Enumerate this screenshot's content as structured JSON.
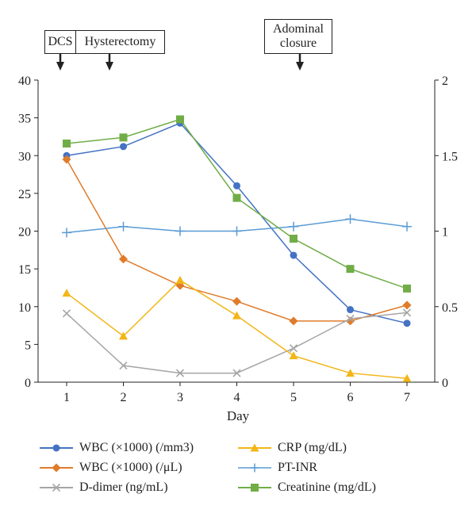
{
  "annotations": {
    "dcs": "DCS",
    "hysterectomy": "Hysterectomy",
    "closure_line1": "Adominal",
    "closure_line2": "closure"
  },
  "chart_data": {
    "type": "line",
    "xlabel": "Day",
    "categories": [
      1,
      2,
      3,
      4,
      5,
      6,
      7
    ],
    "ylim": [
      0,
      40
    ],
    "y2lim": [
      0,
      2
    ],
    "yticks": [
      0,
      5,
      10,
      15,
      20,
      25,
      30,
      35,
      40
    ],
    "y2ticks": [
      "0",
      "0.5",
      "1",
      "1.5",
      "2"
    ],
    "grid": false,
    "legend_position": "bottom",
    "series": [
      {
        "name": "WBC (×1000) (/mm3)",
        "axis": "left",
        "marker": "circle",
        "color": "#4472C4",
        "values": [
          30,
          31.2,
          34.3,
          26,
          16.8,
          9.6,
          7.8
        ]
      },
      {
        "name": "WBC (×1000) (/μL)",
        "axis": "left",
        "marker": "diamond",
        "color": "#E07B2A",
        "values": [
          29.5,
          16.3,
          12.8,
          10.7,
          8.1,
          8.1,
          10.2
        ]
      },
      {
        "name": "D-dimer (ng/mL)",
        "axis": "left",
        "marker": "x",
        "color": "#A5A5A5",
        "values": [
          9.1,
          2.2,
          1.2,
          1.2,
          4.5,
          8.4,
          9.2
        ]
      },
      {
        "name": "CRP (mg/dL)",
        "axis": "left",
        "marker": "triangle",
        "color": "#F2B619",
        "values": [
          11.8,
          6.1,
          13.5,
          8.8,
          3.5,
          1.2,
          0.5
        ]
      },
      {
        "name": "PT-INR",
        "axis": "right",
        "marker": "plus",
        "color": "#5B9BD5",
        "values": [
          0.99,
          1.03,
          1.0,
          1.0,
          1.03,
          1.08,
          1.03
        ]
      },
      {
        "name": "Creatinine (mg/dL)",
        "axis": "right",
        "marker": "square",
        "color": "#70AD47",
        "values": [
          1.58,
          1.62,
          1.74,
          1.22,
          0.95,
          0.75,
          0.62
        ]
      }
    ]
  }
}
